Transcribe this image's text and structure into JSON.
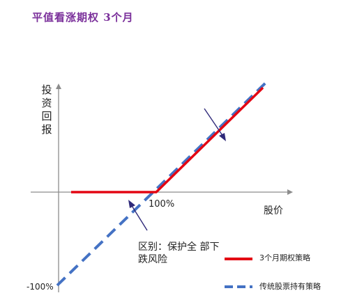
{
  "title": "平值看涨期权 3个月",
  "axes": {
    "y_label": "投资回报",
    "x_label": "股价",
    "x_tick": "100%",
    "y_tick": "-100%"
  },
  "annotation": "区别：保护全  部下跌风险",
  "legend": [
    {
      "label": "3个月期权策略",
      "color": "#e30613",
      "style": "solid"
    },
    {
      "label": "传统股票持有策略",
      "color": "#4472c4",
      "style": "dashed"
    }
  ],
  "colors": {
    "option_line": "#e30613",
    "stock_line": "#4472c4",
    "arrow": "#2f2a7a",
    "axis": "#8c8c8c"
  }
}
